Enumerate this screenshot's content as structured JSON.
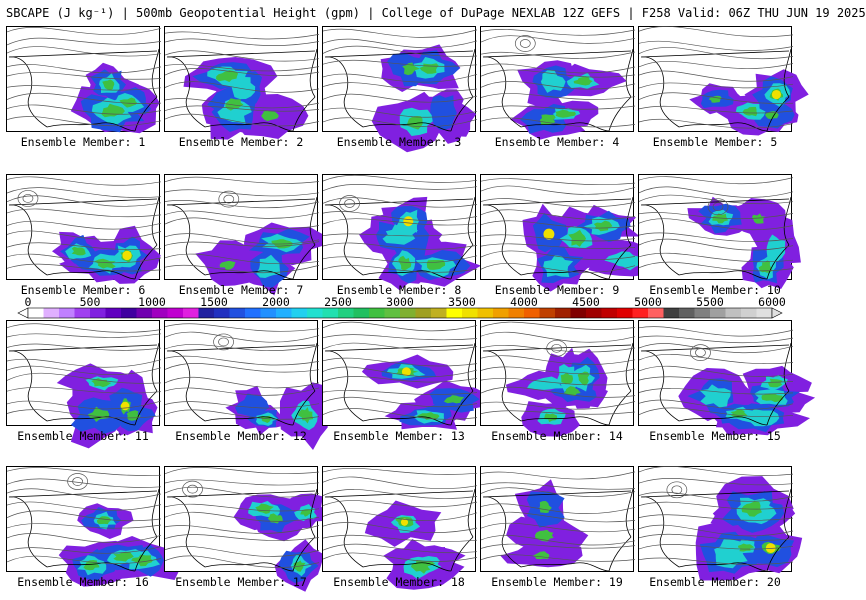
{
  "title": "SBCAPE (J kg⁻¹) | 500mb Geopotential Height (gpm) | College of DuPage NEXLAB 12Z GEFS | F258 Valid: 06Z THU JUN 19 2025",
  "label_prefix": "Ensemble Member: ",
  "members": [
    1,
    2,
    3,
    4,
    5,
    6,
    7,
    8,
    9,
    10,
    11,
    12,
    13,
    14,
    15,
    16,
    17,
    18,
    19,
    20
  ],
  "colorbar": {
    "ticks": [
      "0",
      "500",
      "1000",
      "1500",
      "2000",
      "2500",
      "3000",
      "3500",
      "4000",
      "4500",
      "5000",
      "5500",
      "6000"
    ],
    "colors": [
      "#ffffff",
      "#e0b0ff",
      "#c080ff",
      "#a040f0",
      "#8020e0",
      "#6000c0",
      "#4000a0",
      "#7000b0",
      "#a000c0",
      "#c000d0",
      "#e020e0",
      "#2020a0",
      "#2030c0",
      "#2050e0",
      "#2070ff",
      "#2090ff",
      "#20b0ff",
      "#20d0f0",
      "#20e0d0",
      "#20e0b0",
      "#20d080",
      "#20c060",
      "#40c040",
      "#60c040",
      "#80b030",
      "#a0a020",
      "#c0b020",
      "#ffff00",
      "#f0e000",
      "#f0c000",
      "#f0a000",
      "#f08000",
      "#f06000",
      "#c04000",
      "#a02000",
      "#800000",
      "#a00000",
      "#c00000",
      "#e00000",
      "#ff2020",
      "#ff6060",
      "#404040",
      "#606060",
      "#808080",
      "#a0a0a0",
      "#c0c0c0",
      "#d0d0d0",
      "#e0e0e0"
    ]
  },
  "map_colors": {
    "cape_low": "#8020e0",
    "cape_mid": "#2050e0",
    "cape_high": "#20d0d0",
    "cape_peak": "#40c040",
    "cape_max": "#f0e000",
    "contour": "#555555",
    "border": "#000000"
  }
}
